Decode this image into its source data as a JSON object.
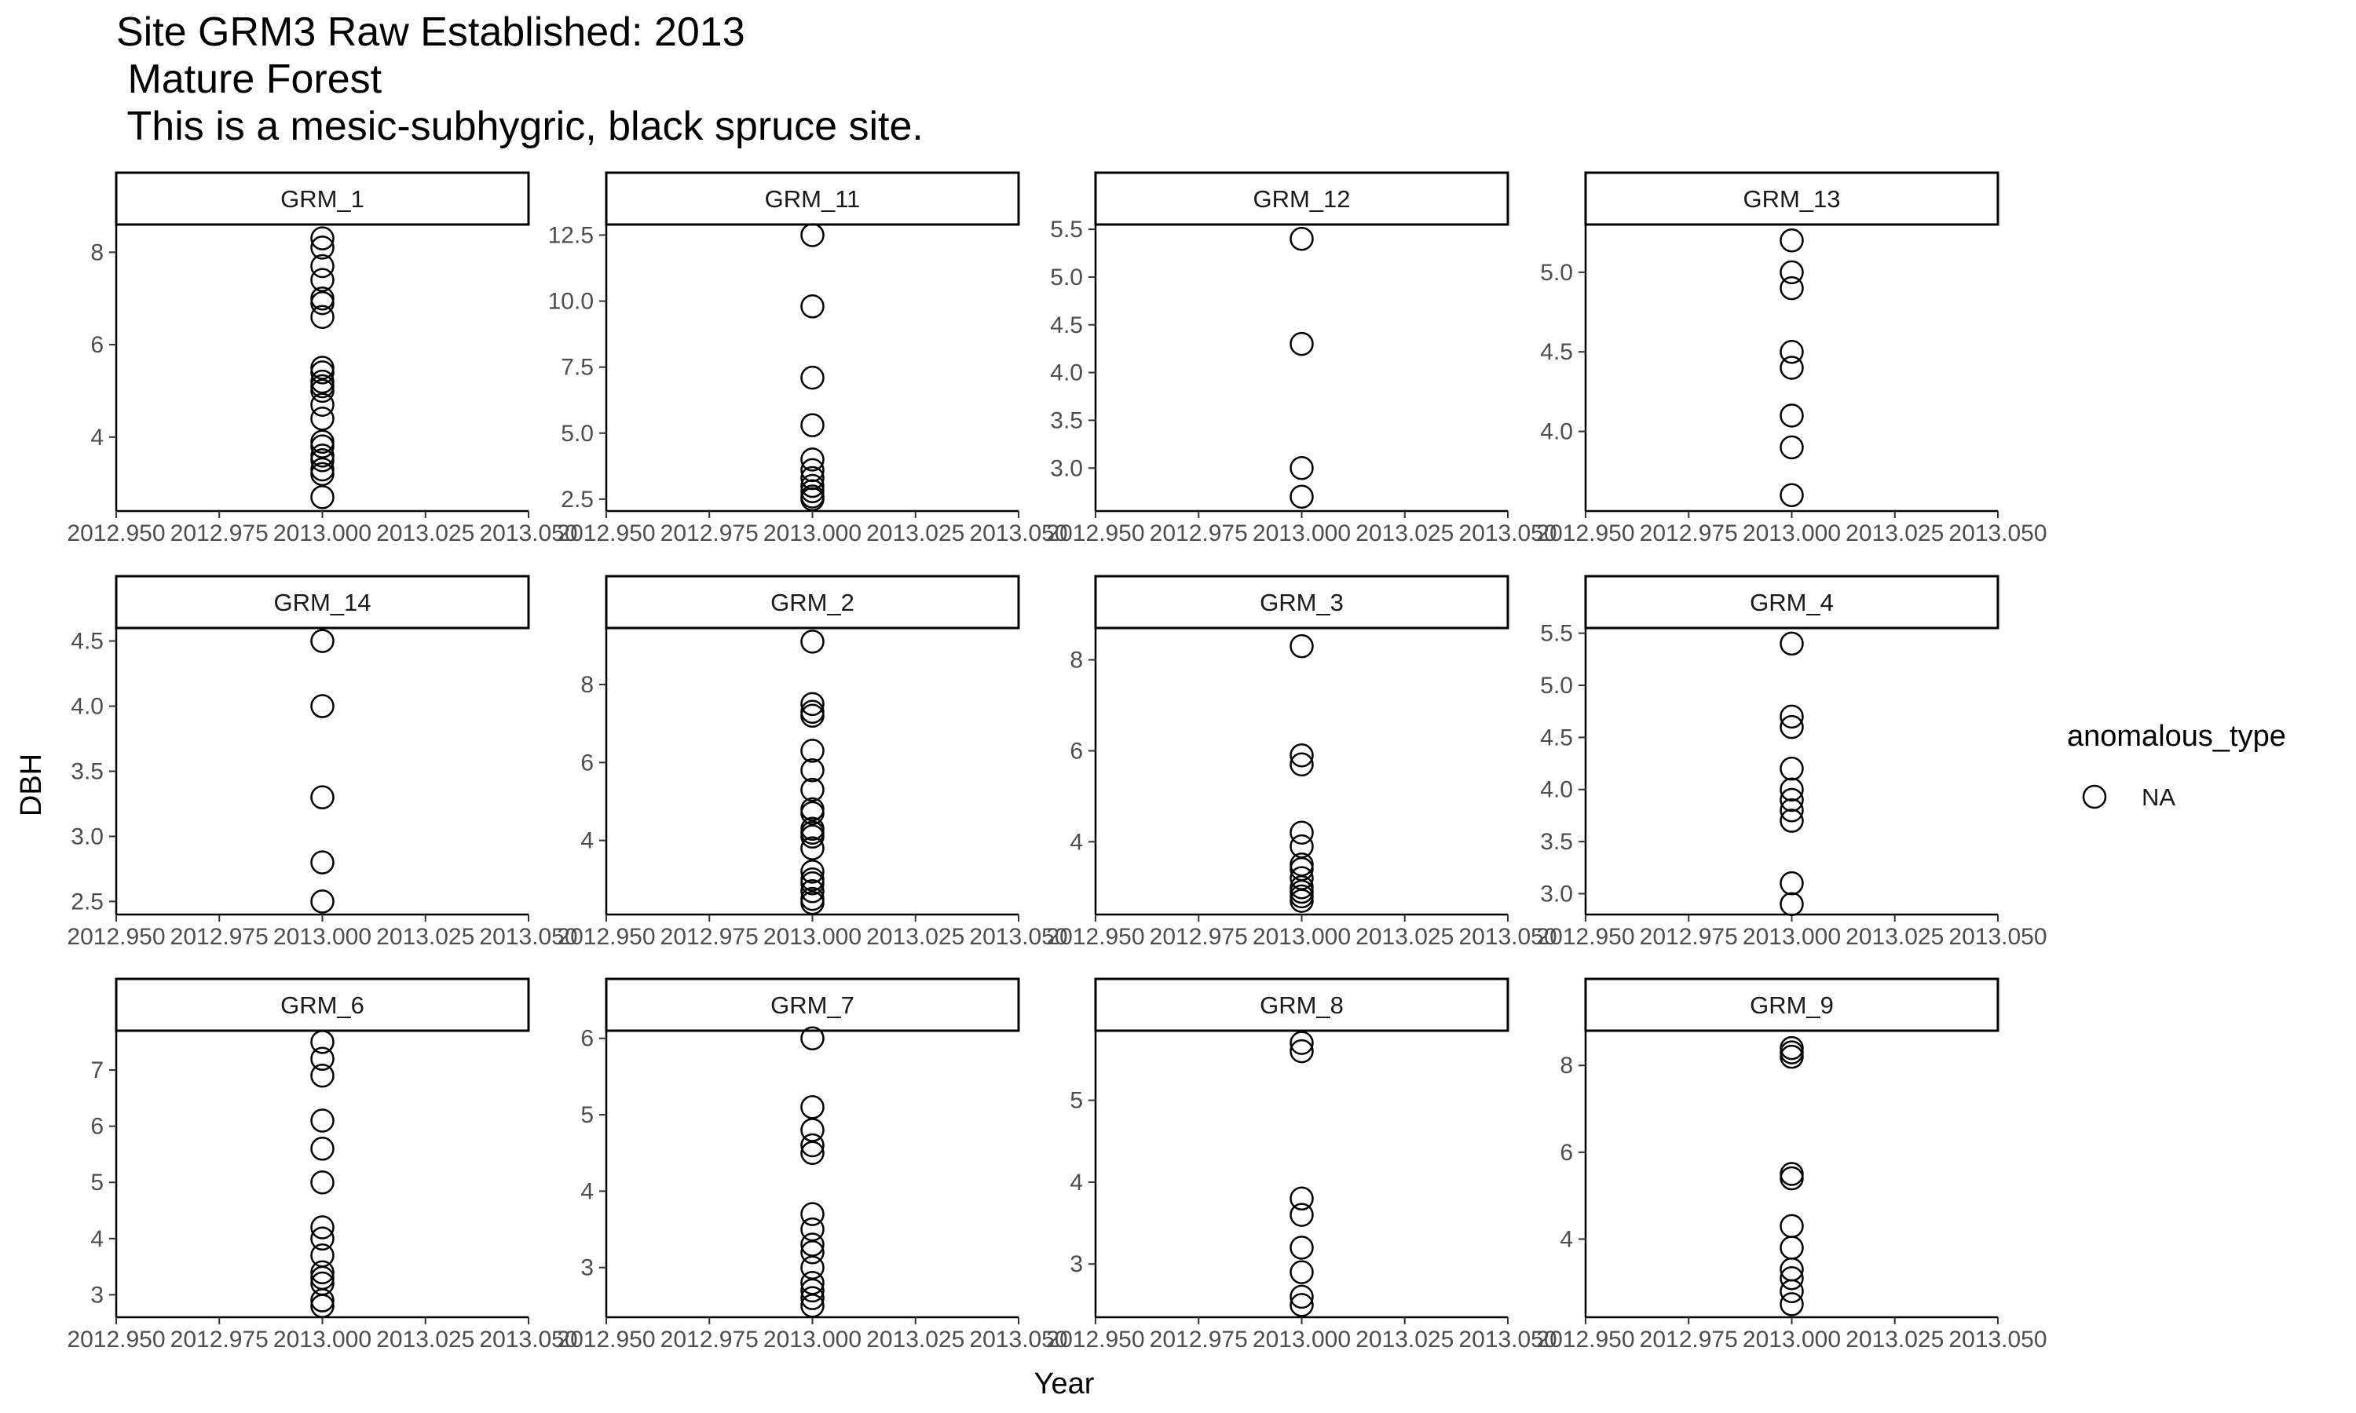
{
  "chart_data": {
    "type": "scatter",
    "title_lines": [
      "Site GRM3 Raw Established: 2013",
      " Mature Forest",
      " This is a mesic-subhygric, black spruce site."
    ],
    "xlabel": "Year",
    "ylabel": "DBH",
    "xlim": [
      2012.95,
      2013.05
    ],
    "x_ticks": [
      "2012.950",
      "2012.975",
      "2013.000",
      "2013.025",
      "2013.050"
    ],
    "grid": false,
    "legend": {
      "title": "anomalous_type",
      "entries": [
        "NA"
      ],
      "placement": "right",
      "marker": "open-circle"
    },
    "colors": {
      "marker_stroke": "#000000",
      "axis": "#000000",
      "strip_border": "#000000",
      "tick_text": "#4d4d4d"
    },
    "panels": [
      {
        "label": "GRM_1",
        "ylim": [
          2.4,
          8.6
        ],
        "y_ticks": [
          {
            "v": 4,
            "t": "4"
          },
          {
            "v": 6,
            "t": "6"
          },
          {
            "v": 8,
            "t": "8"
          }
        ],
        "points": [
          {
            "x": 2013,
            "y": 8.3
          },
          {
            "x": 2013,
            "y": 8.1
          },
          {
            "x": 2013,
            "y": 7.7
          },
          {
            "x": 2013,
            "y": 7.4
          },
          {
            "x": 2013,
            "y": 7.0
          },
          {
            "x": 2013,
            "y": 6.9
          },
          {
            "x": 2013,
            "y": 6.6
          },
          {
            "x": 2013,
            "y": 5.5
          },
          {
            "x": 2013,
            "y": 5.4
          },
          {
            "x": 2013,
            "y": 5.2
          },
          {
            "x": 2013,
            "y": 5.1
          },
          {
            "x": 2013,
            "y": 5.0
          },
          {
            "x": 2013,
            "y": 4.7
          },
          {
            "x": 2013,
            "y": 4.4
          },
          {
            "x": 2013,
            "y": 3.9
          },
          {
            "x": 2013,
            "y": 3.8
          },
          {
            "x": 2013,
            "y": 3.6
          },
          {
            "x": 2013,
            "y": 3.5
          },
          {
            "x": 2013,
            "y": 3.3
          },
          {
            "x": 2013,
            "y": 3.2
          },
          {
            "x": 2013,
            "y": 2.7
          }
        ]
      },
      {
        "label": "GRM_11",
        "ylim": [
          2.05,
          12.9
        ],
        "y_ticks": [
          {
            "v": 2.5,
            "t": "2.5"
          },
          {
            "v": 5,
            "t": "5.0"
          },
          {
            "v": 7.5,
            "t": "7.5"
          },
          {
            "v": 10,
            "t": "10.0"
          },
          {
            "v": 12.5,
            "t": "12.5"
          }
        ],
        "points": [
          {
            "x": 2013,
            "y": 12.5
          },
          {
            "x": 2013,
            "y": 9.8
          },
          {
            "x": 2013,
            "y": 7.1
          },
          {
            "x": 2013,
            "y": 5.3
          },
          {
            "x": 2013,
            "y": 4.0
          },
          {
            "x": 2013,
            "y": 3.6
          },
          {
            "x": 2013,
            "y": 3.3
          },
          {
            "x": 2013,
            "y": 3.0
          },
          {
            "x": 2013,
            "y": 2.8
          },
          {
            "x": 2013,
            "y": 2.6
          },
          {
            "x": 2013,
            "y": 2.5
          }
        ]
      },
      {
        "label": "GRM_12",
        "ylim": [
          2.55,
          5.55
        ],
        "y_ticks": [
          {
            "v": 3.0,
            "t": "3.0"
          },
          {
            "v": 3.5,
            "t": "3.5"
          },
          {
            "v": 4.0,
            "t": "4.0"
          },
          {
            "v": 4.5,
            "t": "4.5"
          },
          {
            "v": 5.0,
            "t": "5.0"
          },
          {
            "v": 5.5,
            "t": "5.5"
          }
        ],
        "points": [
          {
            "x": 2013,
            "y": 5.4
          },
          {
            "x": 2013,
            "y": 4.3
          },
          {
            "x": 2013,
            "y": 3.0
          },
          {
            "x": 2013,
            "y": 2.7
          }
        ]
      },
      {
        "label": "GRM_13",
        "ylim": [
          3.5,
          5.3
        ],
        "y_ticks": [
          {
            "v": 4.0,
            "t": "4.0"
          },
          {
            "v": 4.5,
            "t": "4.5"
          },
          {
            "v": 5.0,
            "t": "5.0"
          }
        ],
        "points": [
          {
            "x": 2013,
            "y": 5.2
          },
          {
            "x": 2013,
            "y": 5.0
          },
          {
            "x": 2013,
            "y": 4.9
          },
          {
            "x": 2013,
            "y": 4.5
          },
          {
            "x": 2013,
            "y": 4.4
          },
          {
            "x": 2013,
            "y": 4.1
          },
          {
            "x": 2013,
            "y": 3.9
          },
          {
            "x": 2013,
            "y": 3.6
          }
        ]
      },
      {
        "label": "GRM_14",
        "ylim": [
          2.4,
          4.6
        ],
        "y_ticks": [
          {
            "v": 2.5,
            "t": "2.5"
          },
          {
            "v": 3.0,
            "t": "3.0"
          },
          {
            "v": 3.5,
            "t": "3.5"
          },
          {
            "v": 4.0,
            "t": "4.0"
          },
          {
            "v": 4.5,
            "t": "4.5"
          }
        ],
        "points": [
          {
            "x": 2013,
            "y": 4.5
          },
          {
            "x": 2013,
            "y": 4.0
          },
          {
            "x": 2013,
            "y": 3.3
          },
          {
            "x": 2013,
            "y": 2.8
          },
          {
            "x": 2013,
            "y": 2.5
          }
        ]
      },
      {
        "label": "GRM_2",
        "ylim": [
          2.1,
          9.45
        ],
        "y_ticks": [
          {
            "v": 4,
            "t": "4"
          },
          {
            "v": 6,
            "t": "6"
          },
          {
            "v": 8,
            "t": "8"
          }
        ],
        "points": [
          {
            "x": 2013,
            "y": 9.1
          },
          {
            "x": 2013,
            "y": 7.5
          },
          {
            "x": 2013,
            "y": 7.3
          },
          {
            "x": 2013,
            "y": 7.2
          },
          {
            "x": 2013,
            "y": 6.3
          },
          {
            "x": 2013,
            "y": 5.8
          },
          {
            "x": 2013,
            "y": 5.3
          },
          {
            "x": 2013,
            "y": 4.8
          },
          {
            "x": 2013,
            "y": 4.7
          },
          {
            "x": 2013,
            "y": 4.3
          },
          {
            "x": 2013,
            "y": 4.2
          },
          {
            "x": 2013,
            "y": 4.1
          },
          {
            "x": 2013,
            "y": 3.8
          },
          {
            "x": 2013,
            "y": 3.2
          },
          {
            "x": 2013,
            "y": 3.0
          },
          {
            "x": 2013,
            "y": 2.9
          },
          {
            "x": 2013,
            "y": 2.7
          },
          {
            "x": 2013,
            "y": 2.5
          },
          {
            "x": 2013,
            "y": 2.4
          }
        ]
      },
      {
        "label": "GRM_3",
        "ylim": [
          2.4,
          8.7
        ],
        "y_ticks": [
          {
            "v": 4,
            "t": "4"
          },
          {
            "v": 6,
            "t": "6"
          },
          {
            "v": 8,
            "t": "8"
          }
        ],
        "points": [
          {
            "x": 2013,
            "y": 8.3
          },
          {
            "x": 2013,
            "y": 5.9
          },
          {
            "x": 2013,
            "y": 5.7
          },
          {
            "x": 2013,
            "y": 4.2
          },
          {
            "x": 2013,
            "y": 3.9
          },
          {
            "x": 2013,
            "y": 3.5
          },
          {
            "x": 2013,
            "y": 3.4
          },
          {
            "x": 2013,
            "y": 3.2
          },
          {
            "x": 2013,
            "y": 3.0
          },
          {
            "x": 2013,
            "y": 2.9
          },
          {
            "x": 2013,
            "y": 2.8
          },
          {
            "x": 2013,
            "y": 2.7
          }
        ]
      },
      {
        "label": "GRM_4",
        "ylim": [
          2.8,
          5.55
        ],
        "y_ticks": [
          {
            "v": 3.0,
            "t": "3.0"
          },
          {
            "v": 3.5,
            "t": "3.5"
          },
          {
            "v": 4.0,
            "t": "4.0"
          },
          {
            "v": 4.5,
            "t": "4.5"
          },
          {
            "v": 5.0,
            "t": "5.0"
          },
          {
            "v": 5.5,
            "t": "5.5"
          }
        ],
        "points": [
          {
            "x": 2013,
            "y": 5.4
          },
          {
            "x": 2013,
            "y": 4.7
          },
          {
            "x": 2013,
            "y": 4.6
          },
          {
            "x": 2013,
            "y": 4.2
          },
          {
            "x": 2013,
            "y": 4.0
          },
          {
            "x": 2013,
            "y": 3.9
          },
          {
            "x": 2013,
            "y": 3.8
          },
          {
            "x": 2013,
            "y": 3.7
          },
          {
            "x": 2013,
            "y": 3.1
          },
          {
            "x": 2013,
            "y": 2.9
          }
        ]
      },
      {
        "label": "GRM_6",
        "ylim": [
          2.6,
          7.7
        ],
        "y_ticks": [
          {
            "v": 3,
            "t": "3"
          },
          {
            "v": 4,
            "t": "4"
          },
          {
            "v": 5,
            "t": "5"
          },
          {
            "v": 6,
            "t": "6"
          },
          {
            "v": 7,
            "t": "7"
          }
        ],
        "points": [
          {
            "x": 2013,
            "y": 7.5
          },
          {
            "x": 2013,
            "y": 7.2
          },
          {
            "x": 2013,
            "y": 6.9
          },
          {
            "x": 2013,
            "y": 6.1
          },
          {
            "x": 2013,
            "y": 5.6
          },
          {
            "x": 2013,
            "y": 5.0
          },
          {
            "x": 2013,
            "y": 4.2
          },
          {
            "x": 2013,
            "y": 4.0
          },
          {
            "x": 2013,
            "y": 3.7
          },
          {
            "x": 2013,
            "y": 3.4
          },
          {
            "x": 2013,
            "y": 3.3
          },
          {
            "x": 2013,
            "y": 3.2
          },
          {
            "x": 2013,
            "y": 2.9
          },
          {
            "x": 2013,
            "y": 2.8
          }
        ]
      },
      {
        "label": "GRM_7",
        "ylim": [
          2.35,
          6.1
        ],
        "y_ticks": [
          {
            "v": 3,
            "t": "3"
          },
          {
            "v": 4,
            "t": "4"
          },
          {
            "v": 5,
            "t": "5"
          },
          {
            "v": 6,
            "t": "6"
          }
        ],
        "points": [
          {
            "x": 2013,
            "y": 6.0
          },
          {
            "x": 2013,
            "y": 5.1
          },
          {
            "x": 2013,
            "y": 4.8
          },
          {
            "x": 2013,
            "y": 4.6
          },
          {
            "x": 2013,
            "y": 4.5
          },
          {
            "x": 2013,
            "y": 3.7
          },
          {
            "x": 2013,
            "y": 3.5
          },
          {
            "x": 2013,
            "y": 3.3
          },
          {
            "x": 2013,
            "y": 3.2
          },
          {
            "x": 2013,
            "y": 3.0
          },
          {
            "x": 2013,
            "y": 2.8
          },
          {
            "x": 2013,
            "y": 2.7
          },
          {
            "x": 2013,
            "y": 2.6
          },
          {
            "x": 2013,
            "y": 2.5
          }
        ]
      },
      {
        "label": "GRM_8",
        "ylim": [
          2.35,
          5.85
        ],
        "y_ticks": [
          {
            "v": 3,
            "t": "3"
          },
          {
            "v": 4,
            "t": "4"
          },
          {
            "v": 5,
            "t": "5"
          }
        ],
        "points": [
          {
            "x": 2013,
            "y": 5.7
          },
          {
            "x": 2013,
            "y": 5.6
          },
          {
            "x": 2013,
            "y": 3.8
          },
          {
            "x": 2013,
            "y": 3.6
          },
          {
            "x": 2013,
            "y": 3.2
          },
          {
            "x": 2013,
            "y": 2.9
          },
          {
            "x": 2013,
            "y": 2.6
          },
          {
            "x": 2013,
            "y": 2.5
          }
        ]
      },
      {
        "label": "GRM_9",
        "ylim": [
          2.2,
          8.8
        ],
        "y_ticks": [
          {
            "v": 4,
            "t": "4"
          },
          {
            "v": 6,
            "t": "6"
          },
          {
            "v": 8,
            "t": "8"
          }
        ],
        "points": [
          {
            "x": 2013,
            "y": 8.4
          },
          {
            "x": 2013,
            "y": 8.3
          },
          {
            "x": 2013,
            "y": 8.2
          },
          {
            "x": 2013,
            "y": 5.5
          },
          {
            "x": 2013,
            "y": 5.4
          },
          {
            "x": 2013,
            "y": 4.3
          },
          {
            "x": 2013,
            "y": 3.8
          },
          {
            "x": 2013,
            "y": 3.3
          },
          {
            "x": 2013,
            "y": 3.1
          },
          {
            "x": 2013,
            "y": 2.8
          },
          {
            "x": 2013,
            "y": 2.5
          }
        ]
      }
    ]
  }
}
